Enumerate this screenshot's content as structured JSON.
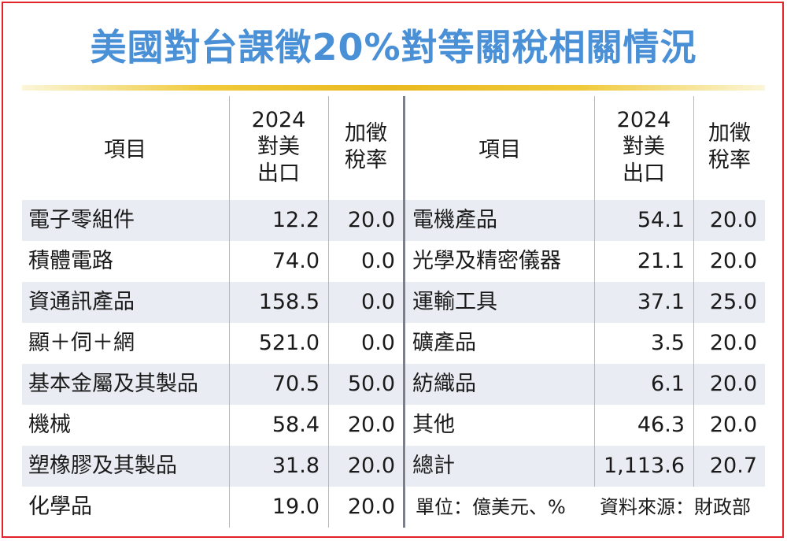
{
  "title": "美國對台課徵20%對等關稅相關情況",
  "headers": {
    "item": "項目",
    "export_line1": "2024",
    "export_line2": "對美",
    "export_line3": "出口",
    "rate_line1": "加徵",
    "rate_line2": "稅率"
  },
  "left_rows": [
    {
      "item": "電子零組件",
      "export": "12.2",
      "rate": "20.0"
    },
    {
      "item": "積體電路",
      "export": "74.0",
      "rate": "0.0"
    },
    {
      "item": "資通訊產品",
      "export": "158.5",
      "rate": "0.0"
    },
    {
      "item": "顯＋伺＋網",
      "export": "521.0",
      "rate": "0.0"
    },
    {
      "item": "基本金屬及其製品",
      "export": "70.5",
      "rate": "50.0"
    },
    {
      "item": "機械",
      "export": "58.4",
      "rate": "20.0"
    },
    {
      "item": "塑橡膠及其製品",
      "export": "31.8",
      "rate": "20.0"
    },
    {
      "item": "化學品",
      "export": "19.0",
      "rate": "20.0"
    }
  ],
  "right_rows": [
    {
      "item": "電機產品",
      "export": "54.1",
      "rate": "20.0"
    },
    {
      "item": "光學及精密儀器",
      "export": "21.1",
      "rate": "20.0"
    },
    {
      "item": "運輸工具",
      "export": "37.1",
      "rate": "25.0"
    },
    {
      "item": "礦產品",
      "export": "3.5",
      "rate": "20.0"
    },
    {
      "item": "紡織品",
      "export": "6.1",
      "rate": "20.0"
    },
    {
      "item": "其他",
      "export": "46.3",
      "rate": "20.0"
    },
    {
      "item": "總計",
      "export": "1,113.6",
      "rate": "20.7"
    }
  ],
  "footer": {
    "unit": "單位：億美元、%",
    "source": "資料來源：財政部"
  }
}
